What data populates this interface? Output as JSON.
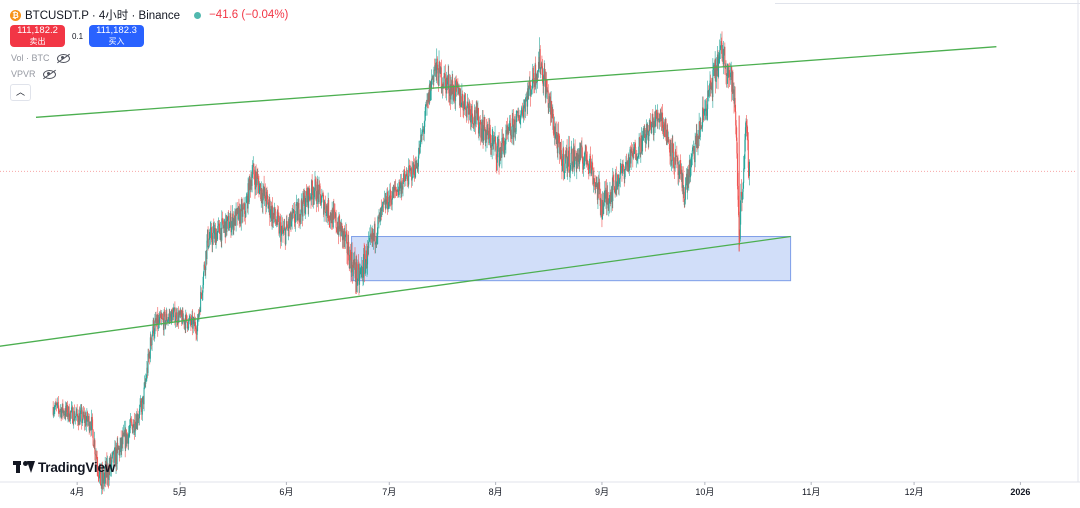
{
  "header": {
    "symbol_title": "BTCUSDT.P · 4小时 · Binance",
    "change": "−41.6 (−0.04%)",
    "sell_price": "111,182.2",
    "sell_label": "卖出",
    "spread": "0.1",
    "buy_price": "111,182.3",
    "buy_label": "买入"
  },
  "indicators": [
    {
      "label": "Vol · BTC"
    },
    {
      "label": "VPVR"
    }
  ],
  "collapse_icon": "chevron-up-icon",
  "brand": "TradingView",
  "x_axis_labels": [
    "4月",
    "5月",
    "6月",
    "7月",
    "8月",
    "9月",
    "10月",
    "11月",
    "12月",
    "2026"
  ],
  "colors": {
    "up": "#26a69a",
    "down": "#ef5350",
    "trendline": "#4caf50",
    "zone_fill": "#b9cdf6",
    "zone_border": "#7e9ee8",
    "dotted_price_line": "#f7a8a8"
  },
  "chart_data": {
    "type": "candlestick",
    "symbol": "BTCUSDT.P",
    "interval": "4小时",
    "exchange": "Binance",
    "x_range": [
      "2025-03-20",
      "2026-01-20"
    ],
    "y_range": [
      76000,
      128000
    ],
    "path": [
      [
        "2025-03-25",
        84500,
        0.8
      ],
      [
        "2025-04-05",
        82800,
        1.0
      ],
      [
        "2025-04-08",
        75800,
        1.4
      ],
      [
        "2025-04-20",
        84500,
        1.0
      ],
      [
        "2025-04-23",
        93400,
        1.2
      ],
      [
        "2025-04-29",
        95000,
        0.8
      ],
      [
        "2025-05-06",
        93600,
        0.9
      ],
      [
        "2025-05-09",
        103400,
        1.2
      ],
      [
        "2025-05-20",
        106700,
        1.1
      ],
      [
        "2025-05-22",
        111200,
        1.3
      ],
      [
        "2025-05-31",
        103900,
        1.3
      ],
      [
        "2025-06-09",
        109300,
        1.2
      ],
      [
        "2025-06-17",
        104400,
        1.3
      ],
      [
        "2025-06-22",
        98800,
        1.6
      ],
      [
        "2025-06-30",
        107600,
        1.1
      ],
      [
        "2025-07-09",
        111800,
        1.0
      ],
      [
        "2025-07-14",
        122800,
        1.5
      ],
      [
        "2025-07-24",
        118500,
        1.3
      ],
      [
        "2025-08-02",
        113300,
        1.5
      ],
      [
        "2025-08-08",
        117400,
        1.1
      ],
      [
        "2025-08-14",
        123800,
        1.5
      ],
      [
        "2025-08-20",
        112500,
        1.5
      ],
      [
        "2025-08-28",
        112800,
        1.3
      ],
      [
        "2025-09-01",
        107300,
        1.5
      ],
      [
        "2025-09-08",
        111800,
        1.1
      ],
      [
        "2025-09-18",
        117800,
        1.3
      ],
      [
        "2025-09-25",
        108800,
        1.4
      ],
      [
        "2025-10-01",
        118200,
        1.4
      ],
      [
        "2025-10-06",
        125000,
        1.6
      ],
      [
        "2025-10-09",
        121200,
        1.4
      ],
      [
        "2025-10-10",
        117000,
        1.6
      ],
      [
        "2025-10-11",
        104500,
        2.0
      ],
      [
        "2025-10-13",
        115800,
        1.5
      ],
      [
        "2025-10-14",
        111182,
        1.2
      ]
    ],
    "trendlines": [
      {
        "name": "upper-channel-line",
        "start": [
          "2025-03-20",
          117300
        ],
        "end": [
          "2025-12-25",
          125300
        ]
      },
      {
        "name": "lower-channel-line",
        "start": [
          "2025-03-08",
          91300
        ],
        "end": [
          "2025-10-26",
          103800
        ]
      }
    ],
    "zone": {
      "start": "2025-06-20",
      "end": "2025-10-26",
      "top": 103800,
      "bottom": 98800
    },
    "last_price_line": 111182.2,
    "grid": false,
    "legend": "top-left"
  }
}
